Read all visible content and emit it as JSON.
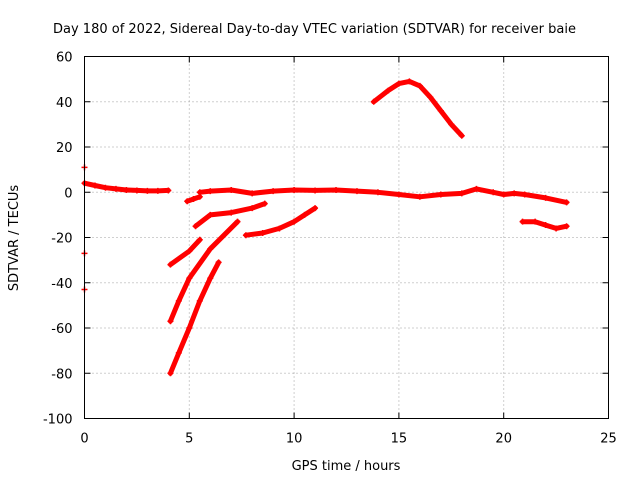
{
  "chart_data": {
    "type": "scatter",
    "title": "Day 180 of 2022, Sidereal Day-to-day VTEC variation (SDTVAR) for receiver baie",
    "xlabel": "GPS time / hours",
    "ylabel": "SDTVAR / TECUs",
    "xlim": [
      0,
      25
    ],
    "ylim": [
      -100,
      60
    ],
    "xticks": [
      0,
      5,
      10,
      15,
      20,
      25
    ],
    "yticks": [
      -100,
      -80,
      -60,
      -40,
      -20,
      0,
      20,
      40,
      60
    ],
    "grid": true,
    "marker": "plus",
    "color": "#ff0000",
    "series": [
      {
        "x": [
          0.0,
          0.5,
          1.0,
          1.5,
          2.0,
          2.5,
          3.0,
          3.5,
          4.0
        ],
        "y": [
          4,
          3,
          2,
          1.5,
          1,
          0.8,
          0.6,
          0.6,
          0.8
        ]
      },
      {
        "x": [
          4.9,
          5.2,
          5.5
        ],
        "y": [
          -4,
          -3,
          -2
        ]
      },
      {
        "x": [
          5.5,
          6.0,
          7.0,
          8.0,
          9.0,
          10.0,
          11.0,
          12.0,
          13.0,
          14.0,
          15.0,
          16.0,
          17.0,
          18.0,
          18.7,
          19.5,
          20.0,
          20.5,
          21.0,
          22.0,
          23.0
        ],
        "y": [
          0,
          0.5,
          1,
          -0.5,
          0.5,
          1,
          0.8,
          1,
          0.5,
          0,
          -1,
          -2,
          -1,
          -0.5,
          1.5,
          0,
          -1,
          -0.5,
          -1,
          -2.5,
          -4.5
        ]
      },
      {
        "x": [
          4.1,
          5.0,
          5.5
        ],
        "y": [
          -32,
          -26,
          -21
        ]
      },
      {
        "x": [
          5.3,
          6.0,
          7.0,
          8.0,
          8.6
        ],
        "y": [
          -15,
          -10,
          -9,
          -7,
          -5
        ]
      },
      {
        "x": [
          7.7,
          8.5,
          9.3,
          10.0,
          10.5,
          11.0
        ],
        "y": [
          -19,
          -18,
          -16,
          -13,
          -10,
          -7
        ]
      },
      {
        "x": [
          4.1,
          4.5,
          5.0,
          6.0,
          7.3
        ],
        "y": [
          -57,
          -48,
          -38,
          -25,
          -13
        ]
      },
      {
        "x": [
          4.1,
          4.5,
          5.0,
          5.5,
          6.0,
          6.4
        ],
        "y": [
          -80,
          -71,
          -60,
          -48,
          -38,
          -31
        ]
      },
      {
        "x": [
          13.8,
          14.5,
          15.0,
          15.5,
          16.0,
          16.5,
          17.0,
          17.5,
          18.0
        ],
        "y": [
          40,
          45,
          48,
          49,
          47,
          42,
          36,
          30,
          25
        ]
      },
      {
        "x": [
          20.9,
          21.5,
          22.0,
          22.5,
          23.0
        ],
        "y": [
          -13,
          -13,
          -14.5,
          -16,
          -15
        ]
      },
      {
        "x": [
          0.0,
          0.0,
          0.0
        ],
        "y": [
          11,
          -27,
          -43
        ]
      }
    ]
  }
}
